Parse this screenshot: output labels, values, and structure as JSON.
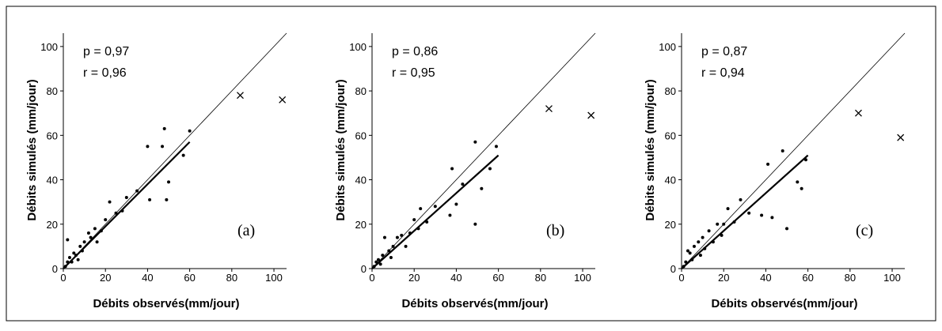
{
  "chart_data": [
    {
      "type": "scatter",
      "xlabel": "Débits observés(mm/jour)",
      "ylabel": "Débits simulés (mm/jour)",
      "xlim": [
        0,
        106
      ],
      "ylim": [
        0,
        106
      ],
      "xticks": [
        0,
        20,
        40,
        60,
        80,
        100
      ],
      "yticks": [
        0,
        20,
        40,
        60,
        80,
        100
      ],
      "annotations": [
        "p = 0,97",
        "r = 0,96",
        "(a)"
      ],
      "series": [
        {
          "style": "dot",
          "color": "#000000",
          "x": [
            48,
            60,
            40,
            47,
            57,
            50,
            41,
            49,
            30,
            22,
            25,
            20,
            15,
            12,
            10,
            8,
            5,
            3,
            2,
            1,
            4,
            6,
            9,
            13,
            18,
            28,
            35,
            2,
            7,
            16
          ],
          "values": [
            63,
            62,
            55,
            55,
            51,
            39,
            31,
            31,
            32,
            30,
            25,
            22,
            18,
            16,
            12,
            10,
            7,
            5,
            3,
            1,
            3,
            6,
            8,
            14,
            17,
            26,
            35,
            13,
            4,
            12
          ]
        },
        {
          "style": "cross",
          "color": "#000000",
          "x": [
            84,
            104
          ],
          "values": [
            78,
            76
          ]
        },
        {
          "style": "thick-line",
          "color": "#000000",
          "x": [
            0,
            60
          ],
          "values": [
            0,
            57
          ]
        },
        {
          "style": "thin-line",
          "color": "#000000",
          "x": [
            0,
            106
          ],
          "values": [
            0,
            106
          ]
        }
      ]
    },
    {
      "type": "scatter",
      "xlabel": "Débits observés(mm/jour)",
      "ylabel": "Débits simulés (mm/jour)",
      "xlim": [
        0,
        106
      ],
      "ylim": [
        0,
        106
      ],
      "xticks": [
        0,
        20,
        40,
        60,
        80,
        100
      ],
      "yticks": [
        0,
        20,
        40,
        60,
        80,
        100
      ],
      "annotations": [
        "p = 0,86",
        "r = 0,95",
        "(b)"
      ],
      "series": [
        {
          "style": "dot",
          "color": "#000000",
          "x": [
            49,
            38,
            59,
            56,
            52,
            49,
            37,
            40,
            30,
            23,
            26,
            20,
            18,
            14,
            10,
            12,
            8,
            5,
            3,
            1,
            6,
            4,
            16,
            22,
            9,
            2,
            43
          ],
          "values": [
            57,
            45,
            55,
            45,
            36,
            20,
            24,
            29,
            28,
            27,
            21,
            22,
            16,
            15,
            10,
            14,
            8,
            6,
            4,
            1,
            14,
            2,
            10,
            18,
            5,
            3,
            38
          ]
        },
        {
          "style": "cross",
          "color": "#000000",
          "x": [
            84,
            104
          ],
          "values": [
            72,
            69
          ]
        },
        {
          "style": "thick-line",
          "color": "#000000",
          "x": [
            0,
            60
          ],
          "values": [
            0,
            51
          ]
        },
        {
          "style": "thin-line",
          "color": "#000000",
          "x": [
            0,
            106
          ],
          "values": [
            0,
            106
          ]
        }
      ]
    },
    {
      "type": "scatter",
      "xlabel": "Débits observés(mm/jour)",
      "ylabel": "Débits simulés (mm/jour)",
      "xlim": [
        0,
        106
      ],
      "ylim": [
        0,
        106
      ],
      "xticks": [
        0,
        20,
        40,
        60,
        80,
        100
      ],
      "yticks": [
        0,
        20,
        40,
        60,
        80,
        100
      ],
      "annotations": [
        "p = 0,87",
        "r = 0,94",
        "(c)"
      ],
      "series": [
        {
          "style": "dot",
          "color": "#000000",
          "x": [
            48,
            41,
            59,
            55,
            57,
            38,
            43,
            50,
            32,
            28,
            22,
            25,
            20,
            17,
            13,
            10,
            8,
            6,
            4,
            2,
            1,
            5,
            11,
            15,
            19,
            3,
            9
          ],
          "values": [
            53,
            47,
            49,
            39,
            36,
            24,
            23,
            18,
            25,
            31,
            27,
            21,
            20,
            20,
            17,
            14,
            12,
            10,
            7,
            3,
            1,
            4,
            9,
            12,
            15,
            8,
            6
          ]
        },
        {
          "style": "cross",
          "color": "#000000",
          "x": [
            84,
            104
          ],
          "values": [
            70,
            59
          ]
        },
        {
          "style": "thick-line",
          "color": "#000000",
          "x": [
            0,
            60
          ],
          "values": [
            0,
            51
          ]
        },
        {
          "style": "thin-line",
          "color": "#000000",
          "x": [
            0,
            106
          ],
          "values": [
            0,
            106
          ]
        }
      ]
    }
  ]
}
